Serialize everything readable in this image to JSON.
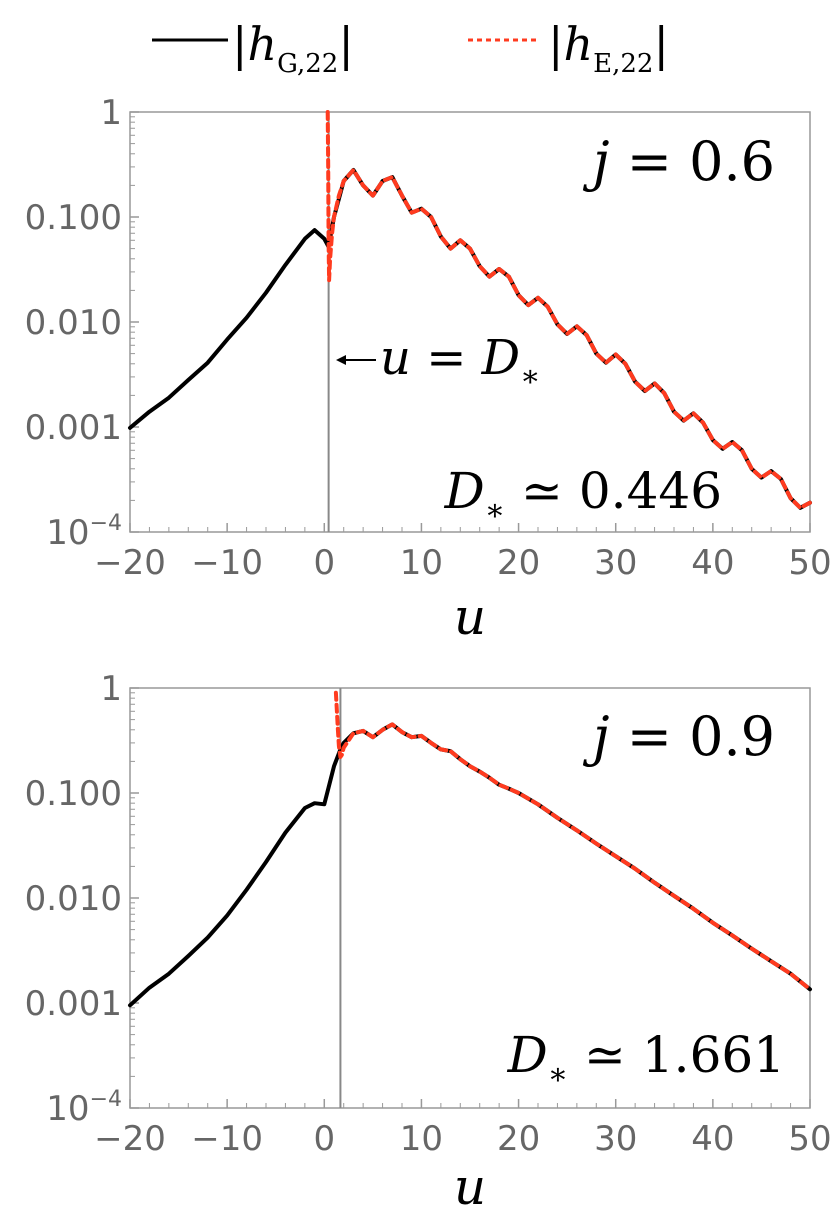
{
  "legend": {
    "series": [
      {
        "base": "h",
        "subscript": "G,22",
        "line": "solid",
        "color": "#000000"
      },
      {
        "base": "h",
        "subscript": "E,22",
        "line": "dashed",
        "color": "#ff3b1f"
      }
    ]
  },
  "chart_data": [
    {
      "type": "line",
      "panel": "top",
      "xlabel": "u",
      "ylabel": "",
      "xlim": [
        -20,
        50
      ],
      "ylim": [
        0.0001,
        1
      ],
      "yscale": "log",
      "grid": false,
      "xticks": [
        -20,
        -10,
        0,
        10,
        20,
        30,
        40,
        50
      ],
      "xtick_labels": [
        "−20",
        "−10",
        "0",
        "10",
        "20",
        "30",
        "40",
        "50"
      ],
      "yticks": [
        0.0001,
        0.001,
        0.01,
        0.1,
        1
      ],
      "ytick_labels": [
        {
          "text": "10",
          "sup": "−4"
        },
        {
          "text": "0.001"
        },
        {
          "text": "0.010"
        },
        {
          "text": "0.100"
        },
        {
          "text": "1"
        }
      ],
      "annotation_j": {
        "var": "j",
        "rel": "=",
        "value": "0.6"
      },
      "annotation_D": {
        "var": "D",
        "sub": "∗",
        "rel": "≃",
        "value": "0.446"
      },
      "arrow_label": {
        "lhs": "u",
        "rel": "=",
        "var": "D",
        "sub": "∗"
      },
      "vline_x": 0.446,
      "series": [
        {
          "x": [
            -20,
            -18,
            -16,
            -14,
            -12,
            -10,
            -8,
            -6,
            -4,
            -2,
            -1,
            0,
            0.446,
            1,
            2,
            3,
            4,
            5,
            6,
            7,
            8,
            9,
            10,
            11,
            12,
            13,
            14,
            15,
            16,
            17,
            18,
            19,
            20,
            21,
            22,
            23,
            24,
            25,
            26,
            27,
            28,
            29,
            30,
            31,
            32,
            33,
            34,
            35,
            36,
            37,
            38,
            39,
            40,
            41,
            42,
            43,
            44,
            45,
            46,
            47,
            48,
            49,
            50
          ],
          "y": [
            0.00098,
            0.0014,
            0.0019,
            0.0028,
            0.0041,
            0.0068,
            0.011,
            0.019,
            0.035,
            0.062,
            0.075,
            0.062,
            0.052,
            0.1,
            0.22,
            0.28,
            0.2,
            0.16,
            0.22,
            0.24,
            0.16,
            0.11,
            0.12,
            0.1,
            0.065,
            0.05,
            0.06,
            0.05,
            0.034,
            0.027,
            0.032,
            0.027,
            0.018,
            0.0145,
            0.017,
            0.014,
            0.0095,
            0.0077,
            0.0091,
            0.0075,
            0.005,
            0.0041,
            0.0049,
            0.004,
            0.0027,
            0.0022,
            0.0026,
            0.0021,
            0.0014,
            0.00115,
            0.00135,
            0.0011,
            0.00075,
            0.00062,
            0.00072,
            0.0006,
            0.0004,
            0.00033,
            0.00038,
            0.00032,
            0.00021,
            0.00017,
            0.00019
          ]
        },
        {
          "x": [
            0.35,
            0.4,
            0.446,
            0.5,
            0.6,
            0.8,
            1,
            1.5,
            2,
            3,
            4,
            5,
            6,
            7,
            8,
            9,
            10,
            11,
            12,
            13,
            14,
            15,
            16,
            17,
            18,
            19,
            20,
            21,
            22,
            23,
            24,
            25,
            26,
            27,
            28,
            29,
            30,
            31,
            32,
            33,
            34,
            35,
            36,
            37,
            38,
            39,
            40,
            41,
            42,
            43,
            44,
            45,
            46,
            47,
            48,
            49,
            50
          ],
          "y": [
            1.0,
            0.3,
            0.055,
            0.025,
            0.04,
            0.07,
            0.1,
            0.16,
            0.22,
            0.28,
            0.2,
            0.16,
            0.22,
            0.24,
            0.16,
            0.11,
            0.12,
            0.1,
            0.065,
            0.05,
            0.06,
            0.05,
            0.034,
            0.027,
            0.032,
            0.027,
            0.018,
            0.0145,
            0.017,
            0.014,
            0.0095,
            0.0077,
            0.0091,
            0.0075,
            0.005,
            0.0041,
            0.0049,
            0.004,
            0.0027,
            0.0022,
            0.0026,
            0.0021,
            0.0014,
            0.00115,
            0.00135,
            0.0011,
            0.00075,
            0.00062,
            0.00072,
            0.0006,
            0.0004,
            0.00033,
            0.00038,
            0.00032,
            0.00021,
            0.00017,
            0.00019
          ]
        }
      ]
    },
    {
      "type": "line",
      "panel": "bottom",
      "xlabel": "u",
      "ylabel": "",
      "xlim": [
        -20,
        50
      ],
      "ylim": [
        0.0001,
        1
      ],
      "yscale": "log",
      "grid": false,
      "xticks": [
        -20,
        -10,
        0,
        10,
        20,
        30,
        40,
        50
      ],
      "xtick_labels": [
        "−20",
        "−10",
        "0",
        "10",
        "20",
        "30",
        "40",
        "50"
      ],
      "yticks": [
        0.0001,
        0.001,
        0.01,
        0.1,
        1
      ],
      "ytick_labels": [
        {
          "text": "10",
          "sup": "−4"
        },
        {
          "text": "0.001"
        },
        {
          "text": "0.010"
        },
        {
          "text": "0.100"
        },
        {
          "text": "1"
        }
      ],
      "annotation_j": {
        "var": "j",
        "rel": "=",
        "value": "0.9"
      },
      "annotation_D": {
        "var": "D",
        "sub": "∗",
        "rel": "≃",
        "value": "1.661"
      },
      "vline_x": 1.661,
      "series": [
        {
          "x": [
            -20,
            -18,
            -16,
            -14,
            -12,
            -10,
            -8,
            -6,
            -4,
            -2,
            -1,
            0,
            1,
            1.661,
            2,
            3,
            4,
            5,
            6,
            7,
            8,
            9,
            10,
            11,
            12,
            13,
            14,
            15,
            16,
            17,
            18,
            19,
            20,
            22,
            24,
            26,
            28,
            30,
            32,
            34,
            36,
            38,
            40,
            42,
            44,
            46,
            48,
            50
          ],
          "y": [
            0.00095,
            0.0014,
            0.0019,
            0.0028,
            0.0042,
            0.0068,
            0.012,
            0.022,
            0.042,
            0.072,
            0.08,
            0.078,
            0.18,
            0.26,
            0.3,
            0.37,
            0.39,
            0.34,
            0.4,
            0.45,
            0.38,
            0.34,
            0.35,
            0.3,
            0.26,
            0.25,
            0.21,
            0.18,
            0.16,
            0.14,
            0.12,
            0.11,
            0.1,
            0.078,
            0.058,
            0.044,
            0.033,
            0.025,
            0.019,
            0.014,
            0.0105,
            0.0079,
            0.0058,
            0.0044,
            0.0033,
            0.0025,
            0.0019,
            0.00135
          ]
        },
        {
          "x": [
            1.2,
            1.3,
            1.4,
            1.5,
            1.661,
            1.8,
            2,
            3,
            4,
            5,
            6,
            7,
            8,
            9,
            10,
            11,
            12,
            13,
            14,
            15,
            16,
            17,
            18,
            19,
            20,
            22,
            24,
            26,
            28,
            30,
            32,
            34,
            36,
            38,
            40,
            42,
            44,
            46,
            48,
            50
          ],
          "y": [
            0.9,
            0.6,
            0.4,
            0.28,
            0.22,
            0.23,
            0.27,
            0.37,
            0.39,
            0.34,
            0.4,
            0.45,
            0.38,
            0.34,
            0.35,
            0.3,
            0.26,
            0.25,
            0.21,
            0.18,
            0.16,
            0.14,
            0.12,
            0.11,
            0.1,
            0.078,
            0.058,
            0.044,
            0.033,
            0.025,
            0.019,
            0.014,
            0.0105,
            0.0079,
            0.0058,
            0.0044,
            0.0033,
            0.0025,
            0.0019,
            0.00135
          ]
        }
      ]
    }
  ]
}
